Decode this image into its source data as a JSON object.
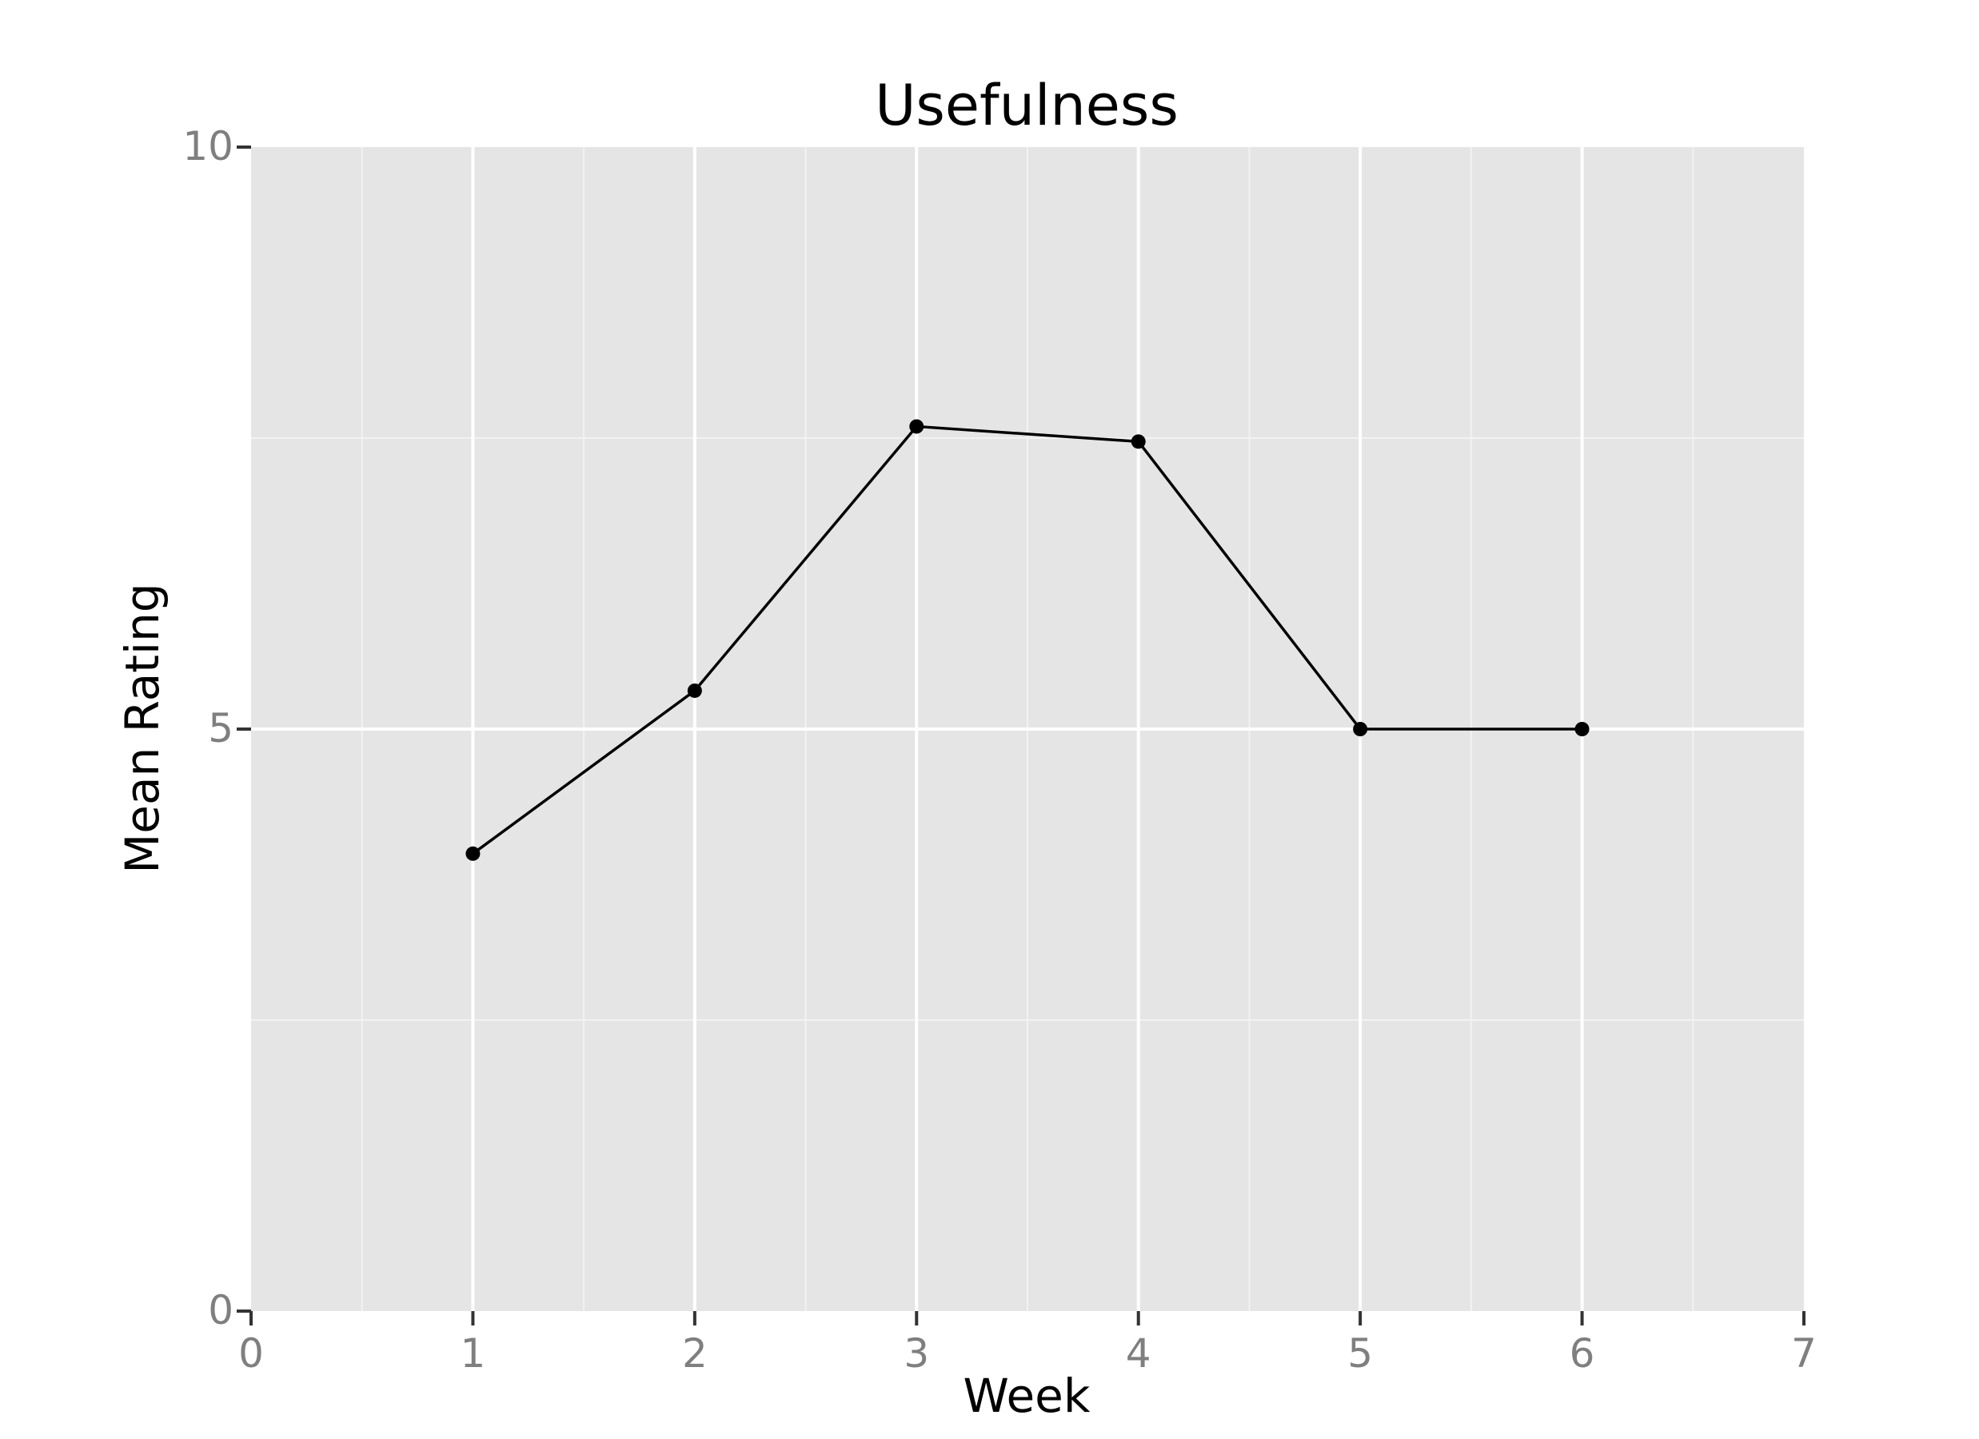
{
  "colors": {
    "panel": "#e5e5e5",
    "grid_major": "#ffffff",
    "grid_minor": "#f2f2f2",
    "line": "#000000",
    "tick_text": "#7f7f7f",
    "tick_mark": "#333333"
  },
  "chart_data": {
    "type": "line",
    "title": "Usefulness",
    "xlabel": "Week",
    "ylabel": "Mean Rating",
    "xlim": [
      0,
      7
    ],
    "ylim": [
      0,
      10
    ],
    "x_ticks": [
      0,
      1,
      2,
      3,
      4,
      5,
      6,
      7
    ],
    "y_ticks": [
      0,
      5,
      10
    ],
    "x_tick_labels": [
      "0",
      "1",
      "2",
      "3",
      "4",
      "5",
      "6",
      "7"
    ],
    "y_tick_labels": [
      "0",
      "5",
      "10"
    ],
    "grid": true,
    "markers": true,
    "x": [
      1,
      2,
      3,
      4,
      5,
      6
    ],
    "series": [
      {
        "values": [
          3.93,
          5.33,
          7.6,
          7.47,
          5.0,
          5.0
        ]
      }
    ]
  }
}
